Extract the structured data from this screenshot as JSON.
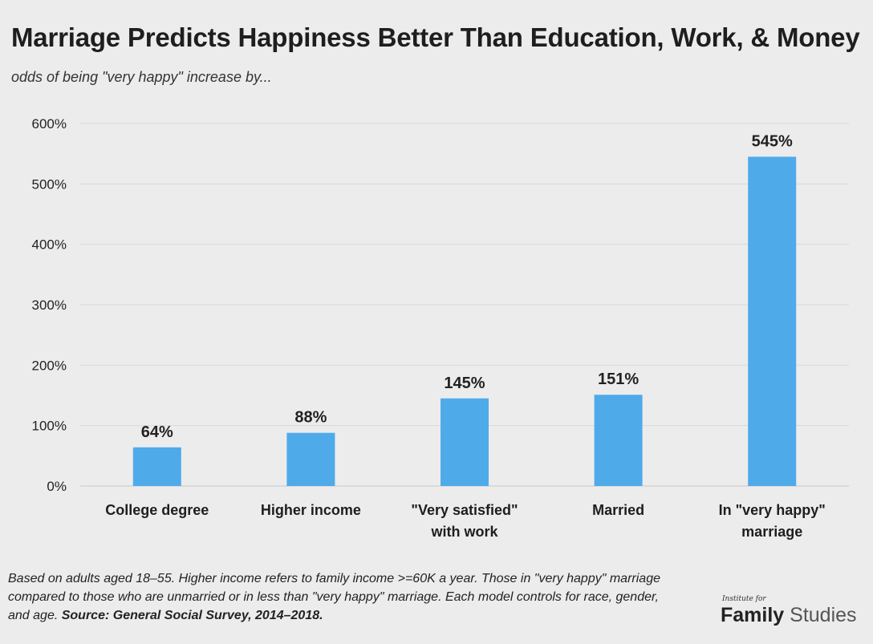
{
  "header": {
    "title": "Marriage Predicts Happiness Better Than Education, Work, & Money",
    "subtitle": "odds of being \"very happy\" increase by..."
  },
  "chart_data": {
    "type": "bar",
    "title": "Marriage Predicts Happiness Better Than Education, Work, & Money",
    "subtitle": "odds of being \"very happy\" increase by...",
    "categories": [
      [
        "College degree"
      ],
      [
        "Higher income"
      ],
      [
        "\"Very satisfied\"",
        "with work"
      ],
      [
        "Married"
      ],
      [
        "In \"very happy\"",
        "marriage"
      ]
    ],
    "values": [
      64,
      88,
      145,
      151,
      545
    ],
    "value_labels": [
      "64%",
      "88%",
      "145%",
      "151%",
      "545%"
    ],
    "ylim": [
      0,
      600
    ],
    "yticks": [
      0,
      100,
      200,
      300,
      400,
      500,
      600
    ],
    "ytick_labels": [
      "0%",
      "100%",
      "200%",
      "300%",
      "400%",
      "500%",
      "600%"
    ],
    "xlabel": "",
    "ylabel": "",
    "grid": true,
    "legend": "none",
    "bar_color": "#4faaea"
  },
  "footnote": {
    "text": "Based on adults aged 18–55. Higher income refers to family income >=60K a year. Those in \"very happy\" marriage compared to those who are unmarried or in less than \"very happy\" marriage. Each model controls for race, gender, and age. ",
    "source": "Source: General Social Survey, 2014–2018."
  },
  "logo": {
    "small": "Institute for",
    "main_bold": "Family",
    "main_light": "Studies"
  }
}
